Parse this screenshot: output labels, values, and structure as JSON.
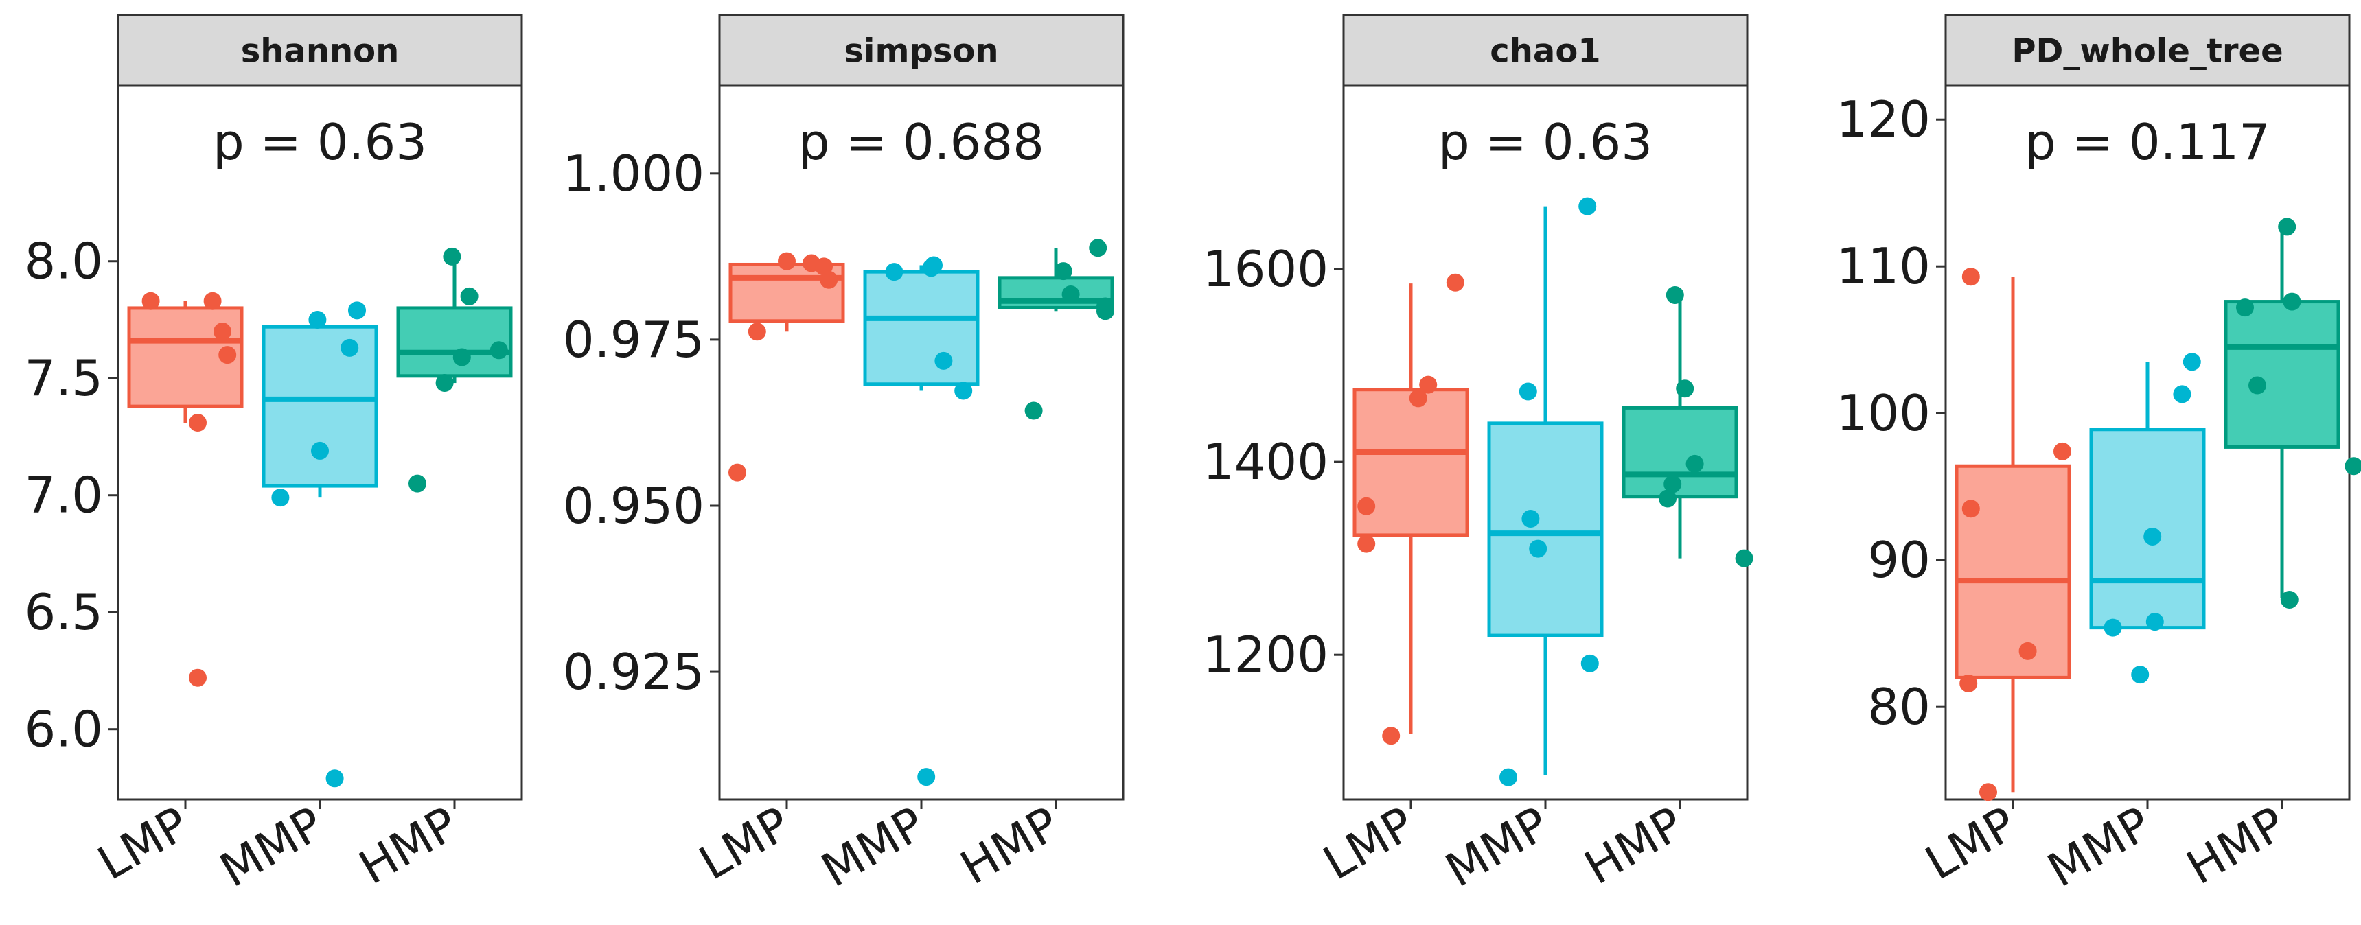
{
  "chart_data": [
    {
      "type": "boxplot",
      "title": "shannon",
      "annotation": "p = 0.63",
      "categories": [
        "LMP",
        "MMP",
        "HMP"
      ],
      "ylim": [
        5.7,
        8.75
      ],
      "yticks": [
        6.0,
        6.5,
        7.0,
        7.5,
        8.0
      ],
      "ytick_labels": [
        "6.0",
        "6.5",
        "7.0",
        "7.5",
        "8.0"
      ],
      "boxes": [
        {
          "group": "LMP",
          "q1": 7.38,
          "median": 7.66,
          "q3": 7.8,
          "whisker_low": 7.31,
          "whisker_high": 7.83
        },
        {
          "group": "MMP",
          "q1": 7.04,
          "median": 7.41,
          "q3": 7.72,
          "whisker_low": 6.99,
          "whisker_high": 7.75
        },
        {
          "group": "HMP",
          "q1": 7.51,
          "median": 7.61,
          "q3": 7.8,
          "whisker_low": 7.48,
          "whisker_high": 8.02
        }
      ],
      "points": [
        {
          "group": "LMP",
          "values": [
            7.83,
            7.83,
            7.7,
            7.6,
            7.31,
            6.22
          ],
          "jitter": [
            -0.28,
            0.22,
            0.3,
            0.34,
            0.1,
            0.1
          ]
        },
        {
          "group": "MMP",
          "values": [
            6.99,
            7.75,
            7.79,
            7.63,
            7.19,
            5.79
          ],
          "jitter": [
            -0.32,
            -0.02,
            0.3,
            0.24,
            0.0,
            0.12
          ]
        },
        {
          "group": "HMP",
          "values": [
            8.02,
            7.85,
            7.62,
            7.59,
            7.48,
            7.05
          ],
          "jitter": [
            -0.02,
            0.12,
            0.36,
            0.06,
            -0.08,
            -0.3
          ]
        }
      ]
    },
    {
      "type": "boxplot",
      "title": "simpson",
      "annotation": "p = 0.688",
      "categories": [
        "LMP",
        "MMP",
        "HMP"
      ],
      "ylim": [
        0.9058,
        1.0132
      ],
      "yticks": [
        0.925,
        0.95,
        0.975,
        1.0
      ],
      "ytick_labels": [
        "0.925",
        "0.950",
        "0.975",
        "1.000"
      ],
      "boxes": [
        {
          "group": "LMP",
          "q1": 0.9778,
          "median": 0.9843,
          "q3": 0.9863,
          "whisker_low": 0.9762,
          "whisker_high": 0.9868
        },
        {
          "group": "MMP",
          "q1": 0.9683,
          "median": 0.9782,
          "q3": 0.9852,
          "whisker_low": 0.9673,
          "whisker_high": 0.9862
        },
        {
          "group": "HMP",
          "q1": 0.9798,
          "median": 0.9808,
          "q3": 0.9843,
          "whisker_low": 0.9793,
          "whisker_high": 0.9888
        }
      ],
      "points": [
        {
          "group": "LMP",
          "values": [
            0.9868,
            0.9865,
            0.986,
            0.984,
            0.9762,
            0.955
          ],
          "jitter": [
            0.0,
            0.2,
            0.3,
            0.34,
            -0.24,
            -0.4
          ]
        },
        {
          "group": "MMP",
          "values": [
            0.9862,
            0.9858,
            0.9852,
            0.9718,
            0.9673,
            0.9092
          ],
          "jitter": [
            0.1,
            0.08,
            -0.22,
            0.18,
            0.34,
            0.04
          ]
        },
        {
          "group": "HMP",
          "values": [
            0.9888,
            0.9853,
            0.9818,
            0.98,
            0.9793,
            0.9643
          ],
          "jitter": [
            0.34,
            0.06,
            0.12,
            0.4,
            0.4,
            -0.18
          ]
        }
      ]
    },
    {
      "type": "boxplot",
      "title": "chao1",
      "annotation": "p = 0.63",
      "categories": [
        "LMP",
        "MMP",
        "HMP"
      ],
      "ylim": [
        1050,
        1790
      ],
      "yticks": [
        1200,
        1400,
        1600
      ],
      "ytick_labels": [
        "1200",
        "1400",
        "1600"
      ],
      "boxes": [
        {
          "group": "LMP",
          "q1": 1324,
          "median": 1410,
          "q3": 1475,
          "whisker_low": 1118,
          "whisker_high": 1585
        },
        {
          "group": "MMP",
          "q1": 1220,
          "median": 1326,
          "q3": 1440,
          "whisker_low": 1075,
          "whisker_high": 1665
        },
        {
          "group": "HMP",
          "q1": 1364,
          "median": 1387,
          "q3": 1456,
          "whisker_low": 1300,
          "whisker_high": 1572
        }
      ],
      "points": [
        {
          "group": "LMP",
          "values": [
            1586,
            1480,
            1466,
            1354,
            1315,
            1116
          ],
          "jitter": [
            0.36,
            0.14,
            0.06,
            -0.36,
            -0.36,
            -0.16
          ]
        },
        {
          "group": "MMP",
          "values": [
            1665,
            1473,
            1341,
            1310,
            1191,
            1073
          ],
          "jitter": [
            0.34,
            -0.14,
            -0.12,
            -0.06,
            0.36,
            -0.3
          ]
        },
        {
          "group": "HMP",
          "values": [
            1573,
            1476,
            1398,
            1377,
            1362,
            1300
          ],
          "jitter": [
            -0.04,
            0.04,
            0.12,
            -0.06,
            -0.1,
            0.52
          ]
        }
      ]
    },
    {
      "type": "boxplot",
      "title": "PD_whole_tree",
      "annotation": "p = 0.117",
      "categories": [
        "LMP",
        "MMP",
        "HMP"
      ],
      "ylim": [
        73.7,
        122.3
      ],
      "yticks": [
        80,
        90,
        100,
        110,
        120
      ],
      "ytick_labels": [
        "80",
        "90",
        "100",
        "110",
        "120"
      ],
      "boxes": [
        {
          "group": "LMP",
          "q1": 82.0,
          "median": 88.6,
          "q3": 96.4,
          "whisker_low": 74.2,
          "whisker_high": 109.3
        },
        {
          "group": "MMP",
          "q1": 85.4,
          "median": 88.6,
          "q3": 98.9,
          "whisker_low": 85.3,
          "whisker_high": 103.5
        },
        {
          "group": "HMP",
          "q1": 97.7,
          "median": 104.5,
          "q3": 107.6,
          "whisker_low": 87.4,
          "whisker_high": 112.7
        }
      ],
      "points": [
        {
          "group": "LMP",
          "values": [
            109.3,
            97.4,
            93.5,
            83.8,
            81.6,
            74.2
          ],
          "jitter": [
            -0.34,
            0.4,
            -0.34,
            0.12,
            -0.36,
            -0.2
          ]
        },
        {
          "group": "MMP",
          "values": [
            103.5,
            101.3,
            91.6,
            85.8,
            85.4,
            82.2
          ],
          "jitter": [
            0.36,
            0.28,
            0.04,
            0.06,
            -0.28,
            -0.06
          ]
        },
        {
          "group": "HMP",
          "values": [
            112.7,
            107.6,
            107.2,
            101.9,
            96.4,
            87.3
          ],
          "jitter": [
            0.04,
            0.08,
            -0.3,
            -0.2,
            0.58,
            0.06
          ]
        }
      ]
    }
  ],
  "colors": {
    "groups": {
      "LMP": "#f8766d",
      "MMP": "#00bfc4",
      "HMP": "#00a087"
    },
    "groups_line": {
      "LMP": "#f05a3f",
      "MMP": "#00b5d1",
      "HMP": "#009c80"
    },
    "groups_fill": {
      "LMP": "#fba596",
      "MMP": "#88dfec",
      "HMP": "#44cdb4"
    },
    "strip_bg": "#d9d9d9",
    "panel_border": "#333333"
  }
}
